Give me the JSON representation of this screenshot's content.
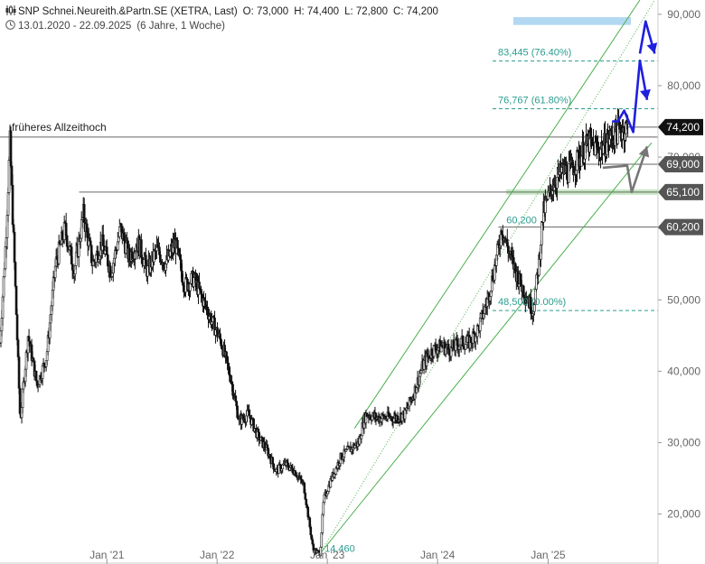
{
  "header": {
    "instrument": "SNP Schnei.Neureith.&Partn.SE (XETRA, Last)",
    "open": "O: 73,000",
    "high": "H: 74,400",
    "low": "L: 72,800",
    "close": "C: 74,200",
    "range": "13.01.2020 - 22.09.2025",
    "period": "(6 Jahre, 1 Woche)"
  },
  "chart_data": {
    "type": "candlestick",
    "y_axis": {
      "position": "right",
      "ticks": [
        "90,000",
        "80,000",
        "70,000",
        "60,000",
        "50,000",
        "40,000",
        "30,000",
        "20,000"
      ],
      "range": [
        13000,
        92000
      ]
    },
    "x_axis": {
      "ticks": [
        "Jan '21",
        "Jan '22",
        "Jan '23",
        "Jan '24",
        "Jan '25"
      ],
      "range": [
        "2020-01-13",
        "2025-12-31"
      ]
    },
    "price_path": [
      [
        "2020-01-13",
        44000
      ],
      [
        "2020-02-01",
        58000
      ],
      [
        "2020-02-15",
        72000
      ],
      [
        "2020-03-01",
        55000
      ],
      [
        "2020-03-20",
        33000
      ],
      [
        "2020-04-15",
        45000
      ],
      [
        "2020-05-15",
        38000
      ],
      [
        "2020-06-15",
        42000
      ],
      [
        "2020-07-15",
        55000
      ],
      [
        "2020-08-15",
        60000
      ],
      [
        "2020-09-15",
        54000
      ],
      [
        "2020-10-15",
        62000
      ],
      [
        "2020-11-15",
        55000
      ],
      [
        "2020-12-15",
        58000
      ],
      [
        "2021-01-15",
        54000
      ],
      [
        "2021-02-15",
        60000
      ],
      [
        "2021-03-15",
        56000
      ],
      [
        "2021-04-15",
        58000
      ],
      [
        "2021-05-15",
        54000
      ],
      [
        "2021-06-15",
        57000
      ],
      [
        "2021-07-15",
        55000
      ],
      [
        "2021-08-15",
        58000
      ],
      [
        "2021-09-15",
        52000
      ],
      [
        "2021-10-15",
        53000
      ],
      [
        "2021-11-15",
        50000
      ],
      [
        "2021-12-15",
        47000
      ],
      [
        "2022-01-15",
        44000
      ],
      [
        "2022-02-15",
        39000
      ],
      [
        "2022-03-15",
        33000
      ],
      [
        "2022-04-15",
        34000
      ],
      [
        "2022-05-15",
        31000
      ],
      [
        "2022-06-15",
        29000
      ],
      [
        "2022-07-15",
        26000
      ],
      [
        "2022-08-15",
        27000
      ],
      [
        "2022-09-15",
        26000
      ],
      [
        "2022-10-15",
        24000
      ],
      [
        "2022-11-15",
        15000
      ],
      [
        "2022-12-08",
        14460
      ],
      [
        "2022-12-20",
        22000
      ],
      [
        "2023-01-15",
        25000
      ],
      [
        "2023-02-15",
        28000
      ],
      [
        "2023-03-15",
        29000
      ],
      [
        "2023-04-15",
        30000
      ],
      [
        "2023-05-01",
        33000
      ],
      [
        "2023-05-10",
        34000
      ],
      [
        "2023-06-15",
        33500
      ],
      [
        "2023-07-15",
        33500
      ],
      [
        "2023-08-15",
        33500
      ],
      [
        "2023-09-15",
        34000
      ],
      [
        "2023-10-15",
        37000
      ],
      [
        "2023-11-15",
        41000
      ],
      [
        "2023-12-15",
        43000
      ],
      [
        "2024-01-15",
        43500
      ],
      [
        "2024-02-15",
        43000
      ],
      [
        "2024-03-15",
        44000
      ],
      [
        "2024-04-15",
        44000
      ],
      [
        "2024-05-15",
        46000
      ],
      [
        "2024-06-15",
        50000
      ],
      [
        "2024-07-15",
        56000
      ],
      [
        "2024-08-01",
        60200
      ],
      [
        "2024-08-15",
        58000
      ],
      [
        "2024-09-15",
        54000
      ],
      [
        "2024-10-15",
        51000
      ],
      [
        "2024-11-12",
        48500
      ],
      [
        "2024-12-01",
        55000
      ],
      [
        "2024-12-15",
        62000
      ],
      [
        "2025-01-15",
        66000
      ],
      [
        "2025-02-15",
        68000
      ],
      [
        "2025-03-15",
        68000
      ],
      [
        "2025-04-15",
        70000
      ],
      [
        "2025-05-15",
        72000
      ],
      [
        "2025-06-15",
        71000
      ],
      [
        "2025-07-15",
        72000
      ],
      [
        "2025-08-15",
        73500
      ],
      [
        "2025-09-22",
        74200
      ]
    ],
    "horizontal_lines": [
      {
        "price": 72800,
        "start": "2020-01-13",
        "color": "#666666",
        "label": "früheres Allzeithoch"
      },
      {
        "price": 65100,
        "start": "2020-10-01",
        "color": "#666666"
      },
      {
        "price": 69000,
        "start": "2025-03-15",
        "color": "#666666"
      },
      {
        "price": 74200,
        "start": "2025-07-15",
        "color": "#666666"
      },
      {
        "price": 60200,
        "start": "2024-07-20",
        "color": "#666666"
      }
    ],
    "fib_levels": [
      {
        "price": 83445,
        "label": "83,445 (76.40%)"
      },
      {
        "price": 76767,
        "label": "76,767 (61.80%)"
      },
      {
        "price": 48500,
        "label": "48,500 (0.00%)"
      }
    ],
    "point_labels": [
      {
        "date": "2022-12-08",
        "price": 14460,
        "label": "14,460"
      },
      {
        "date": "2024-08-01",
        "price": 60200,
        "label": "60,200"
      }
    ],
    "price_tags": [
      {
        "price": 74200,
        "label": "74,200",
        "color": "#111111"
      },
      {
        "price": 69000,
        "label": "69,000",
        "color": "#555555"
      },
      {
        "price": 65100,
        "label": "65,100",
        "color": "#555555"
      },
      {
        "price": 60200,
        "label": "60,200",
        "color": "#555555"
      }
    ],
    "target_zone": {
      "from": 88500,
      "to": 89600,
      "color": "#b3d9f2"
    },
    "support_zone": {
      "price": 65100,
      "color": "#c6e8c2"
    },
    "trend_channel": {
      "lower": [
        [
          "2022-12-08",
          14460
        ],
        [
          "2025-12-10",
          72000
        ]
      ],
      "upper": [
        [
          "2023-04-01",
          32000
        ],
        [
          "2025-11-01",
          92000
        ]
      ],
      "mid_dotted": [
        [
          "2022-12-08",
          14460
        ],
        [
          "2025-12-20",
          92000
        ]
      ]
    },
    "scenario_paths": [
      {
        "color": "#1f1fe0",
        "points": [
          [
            "2025-08-01",
            75000
          ],
          [
            "2025-08-20",
            75000
          ],
          [
            "2025-09-10",
            76500
          ],
          [
            "2025-10-10",
            73500
          ],
          [
            "2025-11-01",
            83500
          ],
          [
            "2025-11-25",
            78000
          ]
        ]
      },
      {
        "color": "#1f1fe0",
        "points": [
          [
            "2025-11-01",
            84500
          ],
          [
            "2025-11-20",
            89000
          ],
          [
            "2025-12-20",
            84500
          ]
        ]
      },
      {
        "color": "#777777",
        "points": [
          [
            "2025-07-01",
            68500
          ],
          [
            "2025-09-20",
            68800
          ],
          [
            "2025-10-05",
            65100
          ],
          [
            "2025-11-25",
            71500
          ]
        ]
      }
    ]
  }
}
